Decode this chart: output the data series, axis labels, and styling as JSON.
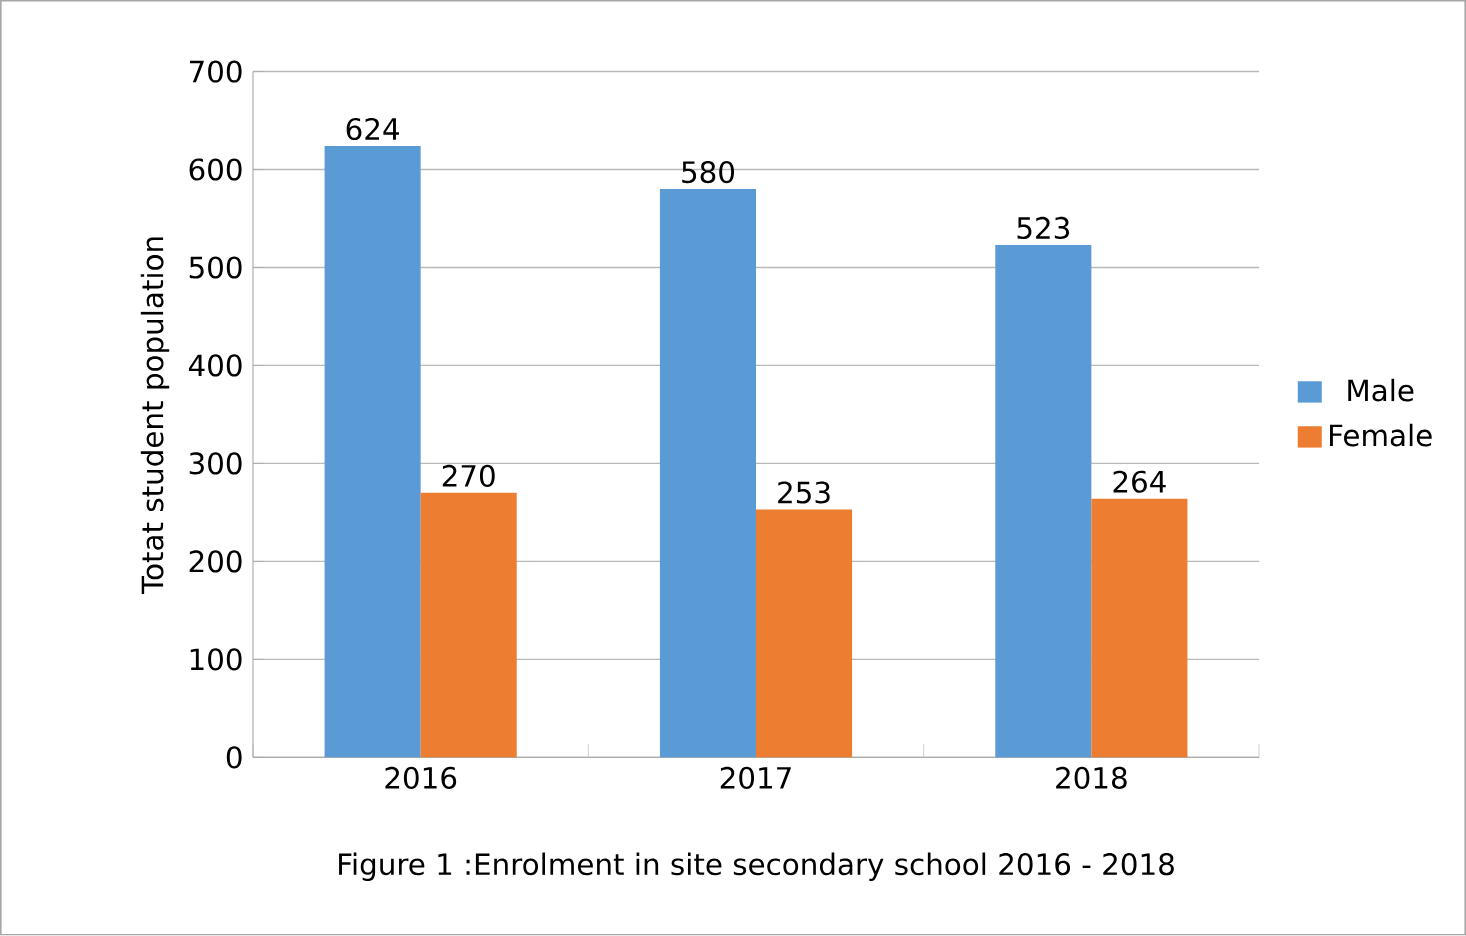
{
  "chart_data": {
    "type": "bar",
    "title": "Figure 1 :Enrolment in site secondary school 2016 - 2018",
    "ylabel": "Totat student population",
    "categories": [
      "2016",
      "2017",
      "2018"
    ],
    "series": [
      {
        "name": "Male",
        "color": "#5b9bd5",
        "values": [
          624,
          580,
          523
        ]
      },
      {
        "name": "Female",
        "color": "#ed7d31",
        "values": [
          270,
          253,
          264
        ]
      }
    ],
    "ylim": [
      0,
      700
    ],
    "yticks": [
      0,
      100,
      200,
      300,
      400,
      500,
      600,
      700
    ],
    "grid": "y",
    "legend": "right",
    "data_labels": true
  }
}
